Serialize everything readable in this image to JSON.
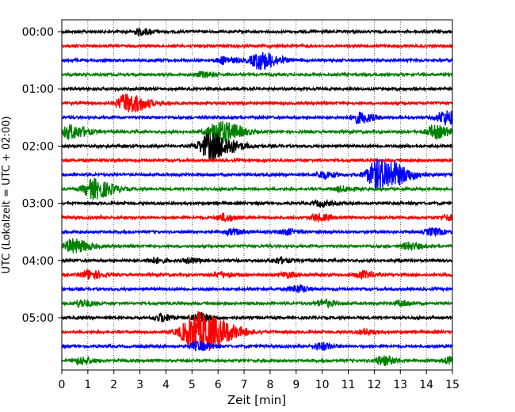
{
  "chart_data": {
    "type": "line",
    "title": "",
    "xlabel": "Zeit  [min]",
    "ylabel": "UTC (Lokalzeit = UTC + 02:00)",
    "xlim": [
      0,
      15
    ],
    "x_ticks": [
      0,
      1,
      2,
      3,
      4,
      5,
      6,
      7,
      8,
      9,
      10,
      11,
      12,
      13,
      14,
      15
    ],
    "y_ticks": [
      "00:00",
      "01:00",
      "02:00",
      "03:00",
      "04:00",
      "05:00"
    ],
    "grid": "vertical dotted",
    "trace_interval_min": 15,
    "trace_colors": [
      "#000000",
      "#ff0000",
      "#0000ff",
      "#008000"
    ],
    "traces": [
      {
        "start": "00:00",
        "color": "#000000",
        "events": [
          {
            "t": 3.0,
            "amp": 0.35
          }
        ]
      },
      {
        "start": "00:15",
        "color": "#ff0000",
        "events": []
      },
      {
        "start": "00:30",
        "color": "#0000ff",
        "events": [
          {
            "t": 7.6,
            "amp": 1.0
          },
          {
            "t": 6.2,
            "amp": 0.4
          }
        ]
      },
      {
        "start": "00:45",
        "color": "#008000",
        "events": [
          {
            "t": 5.4,
            "amp": 0.3
          }
        ]
      },
      {
        "start": "01:00",
        "color": "#000000",
        "events": []
      },
      {
        "start": "01:15",
        "color": "#ff0000",
        "events": [
          {
            "t": 2.5,
            "amp": 1.1
          }
        ]
      },
      {
        "start": "01:30",
        "color": "#0000ff",
        "events": [
          {
            "t": 11.4,
            "amp": 0.6
          },
          {
            "t": 14.7,
            "amp": 0.8
          }
        ]
      },
      {
        "start": "01:45",
        "color": "#008000",
        "events": [
          {
            "t": 0.3,
            "amp": 0.8
          },
          {
            "t": 6.0,
            "amp": 1.3
          },
          {
            "t": 14.3,
            "amp": 0.7
          }
        ]
      },
      {
        "start": "02:00",
        "color": "#000000",
        "events": [
          {
            "t": 5.7,
            "amp": 1.5
          }
        ]
      },
      {
        "start": "02:15",
        "color": "#ff0000",
        "events": []
      },
      {
        "start": "02:30",
        "color": "#0000ff",
        "events": [
          {
            "t": 12.2,
            "amp": 1.8
          },
          {
            "t": 10.0,
            "amp": 0.4
          }
        ]
      },
      {
        "start": "02:45",
        "color": "#008000",
        "events": [
          {
            "t": 1.2,
            "amp": 1.1
          },
          {
            "t": 10.7,
            "amp": 0.3
          }
        ]
      },
      {
        "start": "03:00",
        "color": "#000000",
        "events": [
          {
            "t": 9.9,
            "amp": 0.3
          }
        ]
      },
      {
        "start": "03:15",
        "color": "#ff0000",
        "events": [
          {
            "t": 6.2,
            "amp": 0.4
          },
          {
            "t": 9.8,
            "amp": 0.4
          },
          {
            "t": 14.8,
            "amp": 0.3
          }
        ]
      },
      {
        "start": "03:30",
        "color": "#0000ff",
        "events": [
          {
            "t": 6.5,
            "amp": 0.3
          },
          {
            "t": 8.6,
            "amp": 0.3
          },
          {
            "t": 14.2,
            "amp": 0.4
          }
        ]
      },
      {
        "start": "03:45",
        "color": "#008000",
        "events": [
          {
            "t": 0.4,
            "amp": 0.8
          },
          {
            "t": 13.3,
            "amp": 0.4
          }
        ]
      },
      {
        "start": "04:00",
        "color": "#000000",
        "events": [
          {
            "t": 3.5,
            "amp": 0.3
          },
          {
            "t": 4.9,
            "amp": 0.3
          },
          {
            "t": 8.3,
            "amp": 0.3
          }
        ]
      },
      {
        "start": "04:15",
        "color": "#ff0000",
        "events": [
          {
            "t": 1.0,
            "amp": 0.5
          },
          {
            "t": 6.1,
            "amp": 0.3
          },
          {
            "t": 8.6,
            "amp": 0.3
          },
          {
            "t": 11.5,
            "amp": 0.4
          }
        ]
      },
      {
        "start": "04:30",
        "color": "#0000ff",
        "events": [
          {
            "t": 9.0,
            "amp": 0.4
          }
        ]
      },
      {
        "start": "04:45",
        "color": "#008000",
        "events": [
          {
            "t": 0.7,
            "amp": 0.4
          },
          {
            "t": 10.0,
            "amp": 0.4
          },
          {
            "t": 13.0,
            "amp": 0.3
          }
        ]
      },
      {
        "start": "05:00",
        "color": "#000000",
        "events": [
          {
            "t": 3.8,
            "amp": 0.4
          },
          {
            "t": 5.2,
            "amp": 0.5
          }
        ]
      },
      {
        "start": "05:15",
        "color": "#ff0000",
        "events": [
          {
            "t": 5.2,
            "amp": 2.3
          },
          {
            "t": 11.6,
            "amp": 0.3
          }
        ]
      },
      {
        "start": "05:30",
        "color": "#0000ff",
        "events": [
          {
            "t": 5.2,
            "amp": 0.5
          },
          {
            "t": 9.9,
            "amp": 0.4
          }
        ]
      },
      {
        "start": "05:45",
        "color": "#008000",
        "events": [
          {
            "t": 0.7,
            "amp": 0.4
          },
          {
            "t": 12.3,
            "amp": 0.5
          },
          {
            "t": 14.9,
            "amp": 0.4
          }
        ]
      }
    ]
  }
}
